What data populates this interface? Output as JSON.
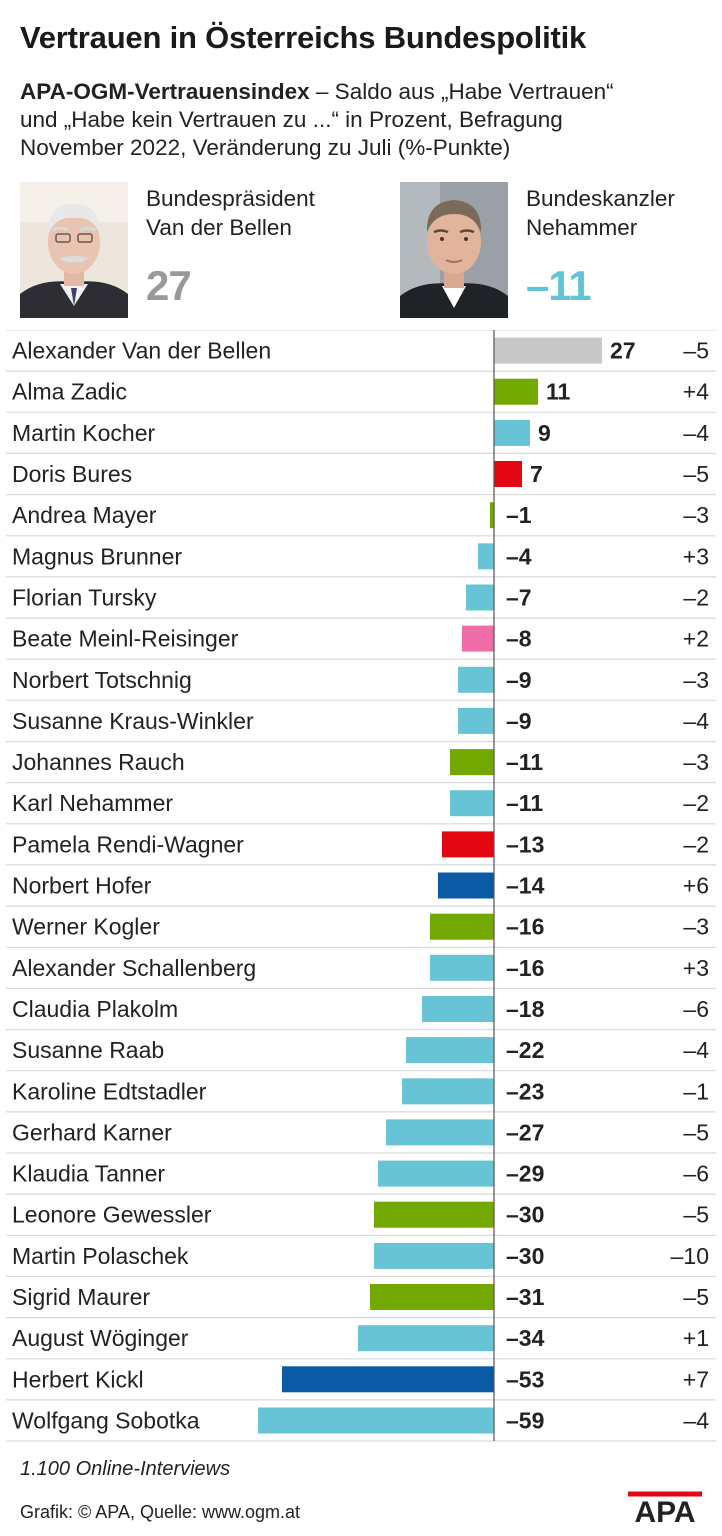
{
  "header": {
    "title": "Vertrauen in Österreichs Bundespolitik",
    "subtitle_bold": "APA-OGM-Vertrauensindex",
    "subtitle_line1": "– Saldo aus „Habe Vertrauen“",
    "subtitle_line2": "und „Habe kein Vertrauen zu ...“ in Prozent, Befragung",
    "subtitle_line3": "November 2022, Veränderung zu Juli (%-Punkte)"
  },
  "highlights": [
    {
      "role_line1": "Bundespräsident",
      "role_line2": "Van der Bellen",
      "value": "27",
      "color": "#999999"
    },
    {
      "role_line1": "Bundeskanzler",
      "role_line2": "Nehammer",
      "value": "–11",
      "color": "#5ec4d6"
    }
  ],
  "colors": {
    "gray": "#c8c8c8",
    "green": "#72a800",
    "cyan": "#66c4d4",
    "red": "#e30613",
    "pink": "#ef6ea8",
    "blue": "#0b5aa6"
  },
  "chart_data": {
    "type": "bar",
    "orientation": "horizontal",
    "xlim": [
      -59,
      27
    ],
    "categories": [
      "Alexander Van der Bellen",
      "Alma Zadic",
      "Martin Kocher",
      "Doris Bures",
      "Andrea Mayer",
      "Magnus Brunner",
      "Florian Tursky",
      "Beate Meinl-Reisinger",
      "Norbert Totschnig",
      "Susanne Kraus-Winkler",
      "Johannes Rauch",
      "Karl Nehammer",
      "Pamela Rendi-Wagner",
      "Norbert Hofer",
      "Werner Kogler",
      "Alexander Schallenberg",
      "Claudia Plakolm",
      "Susanne Raab",
      "Karoline Edtstadler",
      "Gerhard Karner",
      "Klaudia Tanner",
      "Leonore Gewessler",
      "Martin Polaschek",
      "Sigrid Maurer",
      "August Wöginger",
      "Herbert Kickl",
      "Wolfgang Sobotka"
    ],
    "values": [
      27,
      11,
      9,
      7,
      -1,
      -4,
      -7,
      -8,
      -9,
      -9,
      -11,
      -11,
      -13,
      -14,
      -16,
      -16,
      -18,
      -22,
      -23,
      -27,
      -29,
      -30,
      -30,
      -31,
      -34,
      -53,
      -59
    ],
    "value_labels": [
      "27",
      "11",
      "9",
      "7",
      "–1",
      "–4",
      "–7",
      "–8",
      "–9",
      "–9",
      "–11",
      "–11",
      "–13",
      "–14",
      "–16",
      "–16",
      "–18",
      "–22",
      "–23",
      "–27",
      "–29",
      "–30",
      "–30",
      "–31",
      "–34",
      "–53",
      "–59"
    ],
    "change_labels": [
      "–5",
      "+4",
      "–4",
      "–5",
      "–3",
      "+3",
      "–2",
      "+2",
      "–3",
      "–4",
      "–3",
      "–2",
      "–2",
      "+6",
      "–3",
      "+3",
      "–6",
      "–4",
      "–1",
      "–5",
      "–6",
      "–5",
      "–10",
      "–5",
      "+1",
      "+7",
      "–4"
    ],
    "bar_colors": [
      "gray",
      "green",
      "cyan",
      "red",
      "green",
      "cyan",
      "cyan",
      "pink",
      "cyan",
      "cyan",
      "green",
      "cyan",
      "red",
      "blue",
      "green",
      "cyan",
      "cyan",
      "cyan",
      "cyan",
      "cyan",
      "cyan",
      "green",
      "cyan",
      "green",
      "cyan",
      "blue",
      "cyan"
    ]
  },
  "footer": {
    "footnote": "1.100 Online-Interviews",
    "credit": "Grafik: © APA, Quelle: www.ogm.at",
    "logo_text": "APA"
  }
}
